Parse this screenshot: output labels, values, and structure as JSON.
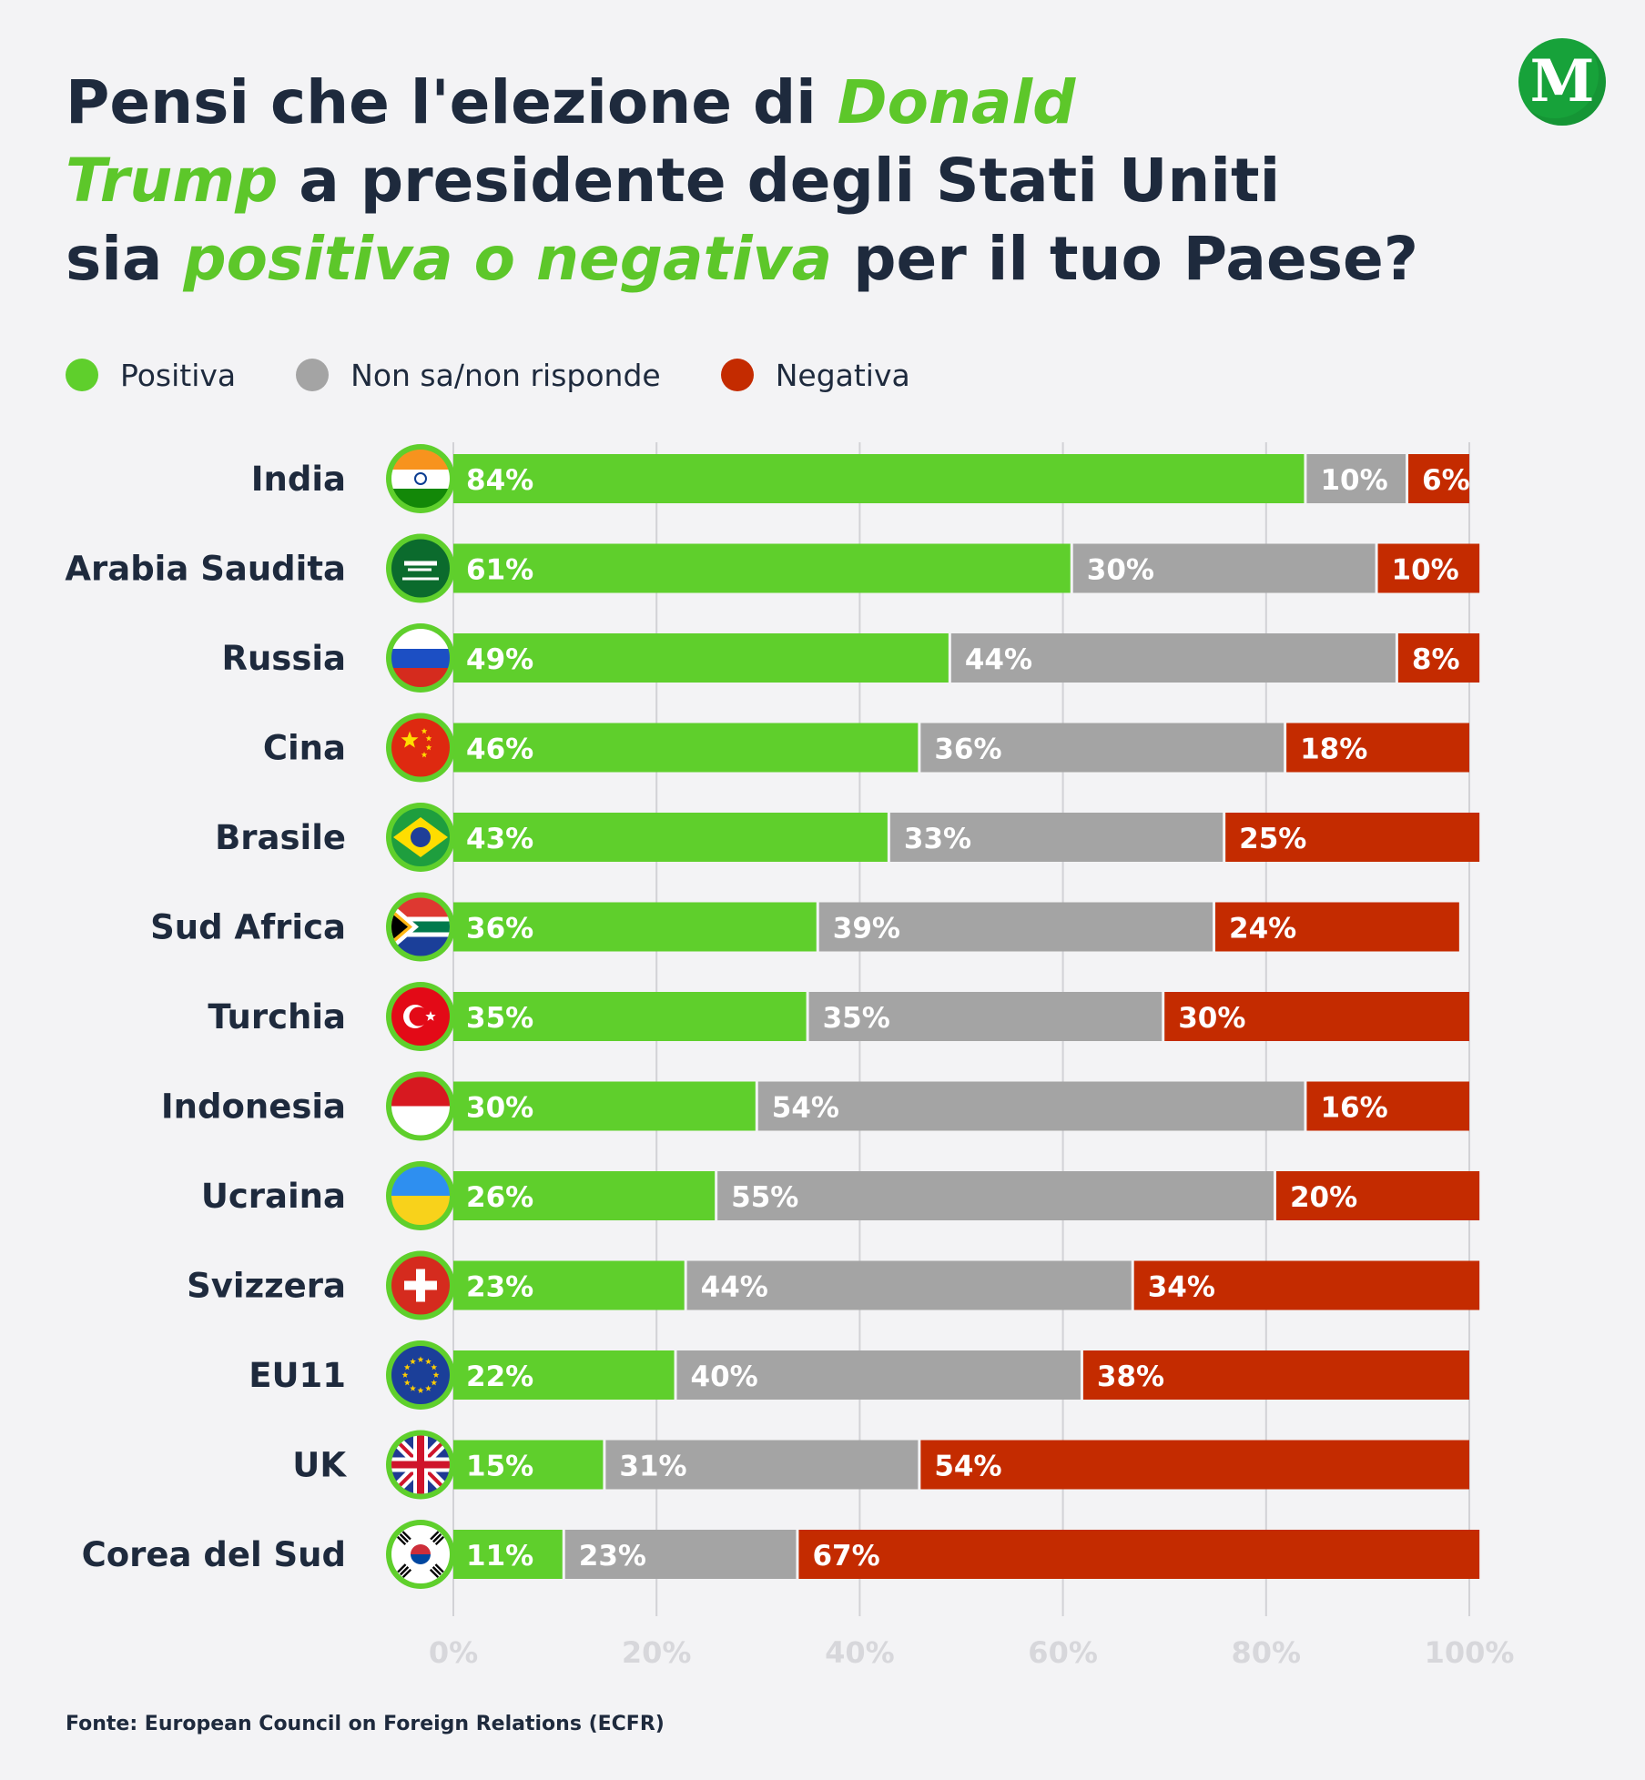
{
  "title": {
    "part1": "Pensi che l'elezione di ",
    "highlight1": "Donald",
    "highlight1b": "Trump",
    "part2": " a presidente degli Stati Uniti",
    "part3": "sia ",
    "highlight2": "positiva o negativa",
    "part4": " per il tuo Paese?"
  },
  "logo": {
    "letter": "M",
    "color": "#17a23a"
  },
  "colors": {
    "positiva": "#5fcf2c",
    "non_sa": "#a4a4a4",
    "negativa": "#c42b00",
    "text": "#1e2a3d",
    "axis": "#d2d2d6"
  },
  "chart_data": {
    "type": "bar",
    "orientation": "horizontal",
    "stacked": true,
    "categories": [
      "India",
      "Arabia Saudita",
      "Russia",
      "Cina",
      "Brasile",
      "Sud Africa",
      "Turchia",
      "Indonesia",
      "Ucraina",
      "Svizzera",
      "EU11",
      "UK",
      "Corea del Sud"
    ],
    "series": [
      {
        "name": "Positiva",
        "color": "#5fcf2c",
        "values": [
          84,
          61,
          49,
          46,
          43,
          36,
          35,
          30,
          26,
          23,
          22,
          15,
          11
        ]
      },
      {
        "name": "Non sa/non risponde",
        "color": "#a4a4a4",
        "values": [
          10,
          30,
          44,
          36,
          33,
          39,
          35,
          54,
          55,
          44,
          40,
          31,
          23
        ]
      },
      {
        "name": "Negativa",
        "color": "#c42b00",
        "values": [
          6,
          10,
          8,
          18,
          25,
          24,
          30,
          16,
          20,
          34,
          38,
          54,
          67
        ]
      }
    ],
    "flags": [
      "india-flag-icon",
      "saudi-arabia-flag-icon",
      "russia-flag-icon",
      "china-flag-icon",
      "brazil-flag-icon",
      "south-africa-flag-icon",
      "turkey-flag-icon",
      "indonesia-flag-icon",
      "ukraine-flag-icon",
      "switzerland-flag-icon",
      "eu-flag-icon",
      "uk-flag-icon",
      "south-korea-flag-icon"
    ],
    "xlim": [
      0,
      100
    ],
    "xticks": [
      "0%",
      "20%",
      "40%",
      "60%",
      "80%",
      "100%"
    ],
    "grid": true,
    "legend": "top-left"
  },
  "source": "Fonte: European Council on Foreign Relations (ECFR)"
}
